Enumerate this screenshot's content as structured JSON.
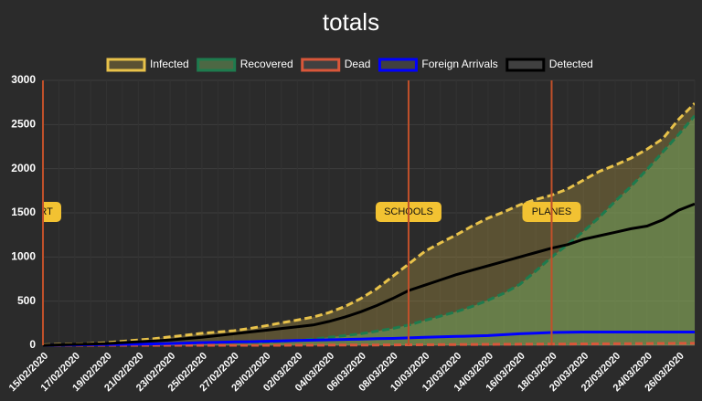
{
  "chart_data": {
    "type": "line",
    "title": "totals",
    "categories": [
      "15/02/2020",
      null,
      "17/02/2020",
      null,
      "19/02/2020",
      null,
      "21/02/2020",
      null,
      "23/02/2020",
      null,
      "25/02/2020",
      null,
      "27/02/2020",
      null,
      "29/02/2020",
      null,
      "02/03/2020",
      null,
      "04/03/2020",
      null,
      "06/03/2020",
      null,
      "08/03/2020",
      null,
      "10/03/2020",
      null,
      "12/03/2020",
      null,
      "14/03/2020",
      null,
      "16/03/2020",
      null,
      "18/03/2020",
      null,
      "20/03/2020",
      null,
      "22/03/2020",
      null,
      "24/03/2020",
      null,
      "26/03/2020",
      null
    ],
    "series": [
      {
        "name": "Infected",
        "color": "#e8c24a",
        "fill": "rgba(232,194,74,0.25)",
        "dashed": true,
        "values": [
          5,
          10,
          15,
          20,
          30,
          45,
          60,
          75,
          95,
          115,
          135,
          150,
          165,
          190,
          220,
          255,
          285,
          320,
          370,
          440,
          530,
          640,
          780,
          920,
          1060,
          1160,
          1250,
          1350,
          1440,
          1510,
          1590,
          1650,
          1700,
          1770,
          1870,
          1970,
          2040,
          2120,
          2220,
          2340,
          2560,
          2740
        ]
      },
      {
        "name": "Recovered",
        "color": "#1e7b4e",
        "fill": "rgba(120,180,100,0.45)",
        "dashed": true,
        "values": [
          0,
          0,
          0,
          0,
          0,
          0,
          2,
          4,
          6,
          8,
          10,
          15,
          20,
          25,
          35,
          45,
          55,
          70,
          90,
          110,
          130,
          160,
          190,
          230,
          280,
          330,
          380,
          440,
          510,
          590,
          690,
          840,
          1000,
          1140,
          1290,
          1450,
          1630,
          1800,
          1990,
          2190,
          2390,
          2600
        ]
      },
      {
        "name": "Dead",
        "color": "#d9573a",
        "dashed": true,
        "values": [
          0,
          0,
          0,
          0,
          0,
          0,
          0,
          0,
          0,
          0,
          0,
          0,
          0,
          0,
          0,
          0,
          1,
          1,
          2,
          2,
          3,
          3,
          4,
          5,
          6,
          7,
          8,
          9,
          10,
          11,
          12,
          13,
          14,
          15,
          16,
          17,
          18,
          19,
          20,
          21,
          22,
          23
        ]
      },
      {
        "name": "Foreign Arrivals",
        "color": "#0000ff",
        "dashed": false,
        "values": [
          0,
          2,
          4,
          6,
          8,
          10,
          12,
          16,
          20,
          25,
          30,
          34,
          38,
          40,
          45,
          50,
          55,
          58,
          62,
          66,
          70,
          74,
          78,
          84,
          90,
          96,
          100,
          105,
          110,
          120,
          130,
          138,
          145,
          148,
          150,
          150,
          150,
          150,
          150,
          150,
          150,
          150
        ]
      },
      {
        "name": "Detected",
        "color": "#000000",
        "dashed": false,
        "values": [
          0,
          5,
          10,
          15,
          20,
          30,
          40,
          50,
          60,
          75,
          90,
          110,
          130,
          150,
          170,
          190,
          210,
          230,
          270,
          320,
          380,
          450,
          530,
          620,
          680,
          740,
          800,
          850,
          900,
          950,
          1000,
          1050,
          1100,
          1140,
          1200,
          1240,
          1280,
          1320,
          1350,
          1420,
          1530,
          1600
        ]
      }
    ],
    "annotations": [
      {
        "label": "ART",
        "x": 0
      },
      {
        "label": "SCHOOLS",
        "x": 23
      },
      {
        "label": "PLANES",
        "x": 32
      }
    ],
    "ylim": [
      0,
      3000
    ],
    "yticks": [
      0,
      500,
      1000,
      1500,
      2000,
      2500,
      3000
    ],
    "grid": true,
    "legend": "top"
  }
}
